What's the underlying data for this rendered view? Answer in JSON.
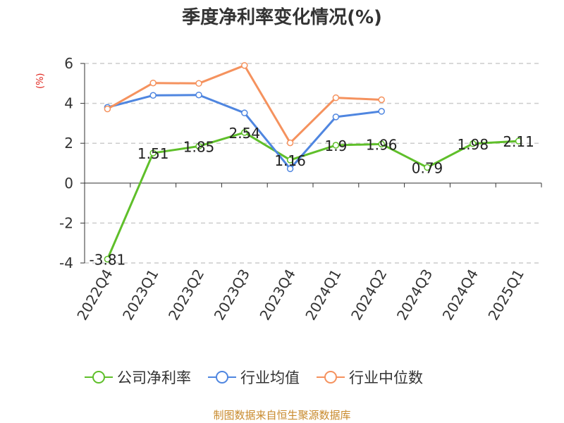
{
  "title": "季度净利率变化情况(%)",
  "y_unit": "(%)",
  "source": "制图数据来自恒生聚源数据库",
  "colors": {
    "company": "#5fbf2a",
    "industry_avg": "#4f86e0",
    "industry_median": "#f5925e",
    "axis": "#333333",
    "grid": "#cccccc",
    "unit": "#e0241c"
  },
  "chart_data": {
    "type": "line",
    "title": "季度净利率变化情况(%)",
    "ylabel": "(%)",
    "ylim": [
      -4,
      6
    ],
    "yticks": [
      6,
      4,
      2,
      0,
      -2,
      -4
    ],
    "grid": true,
    "legend_position": "bottom",
    "categories": [
      "2022Q4",
      "2023Q1",
      "2023Q2",
      "2023Q3",
      "2023Q4",
      "2024Q1",
      "2024Q2",
      "2024Q3",
      "2024Q4",
      "2025Q1"
    ],
    "series": [
      {
        "name": "公司净利率",
        "color": "#5fbf2a",
        "values": [
          -3.81,
          1.51,
          1.85,
          2.54,
          1.16,
          1.9,
          1.96,
          0.79,
          1.98,
          2.11
        ],
        "labels": [
          "-3.81",
          "1.51",
          "1.85",
          "2.54",
          "1.16",
          "1.9",
          "1.96",
          "0.79",
          "1.98",
          "2.11"
        ]
      },
      {
        "name": "行业均值",
        "color": "#4f86e0",
        "values": [
          3.8,
          4.4,
          4.42,
          3.52,
          0.72,
          3.32,
          3.6,
          null,
          null,
          null
        ]
      },
      {
        "name": "行业中位数",
        "color": "#f5925e",
        "values": [
          3.72,
          5.02,
          5.0,
          5.9,
          2.02,
          4.28,
          4.18,
          null,
          null,
          null
        ]
      }
    ]
  }
}
